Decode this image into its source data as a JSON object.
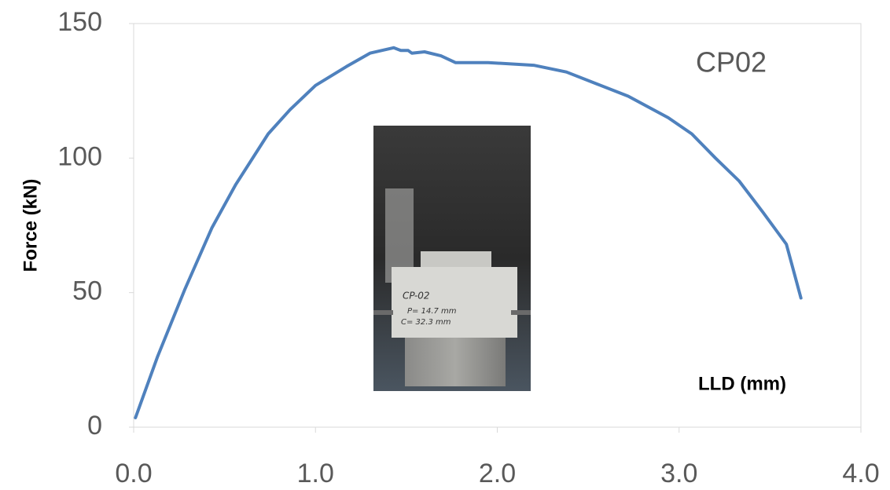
{
  "chart_data": {
    "type": "line",
    "annotation": "CP02",
    "x_label": "LLD (mm)",
    "y_label": "Force (kN)",
    "x": [
      0.01,
      0.13,
      0.28,
      0.43,
      0.56,
      0.74,
      0.86,
      1.0,
      1.17,
      1.3,
      1.43,
      1.47,
      1.51,
      1.53,
      1.6,
      1.69,
      1.77,
      1.95,
      2.2,
      2.38,
      2.55,
      2.72,
      2.94,
      3.07,
      3.2,
      3.33,
      3.46,
      3.59,
      3.67
    ],
    "values": [
      3.5,
      26,
      51,
      74,
      90,
      109,
      118,
      127,
      134,
      139,
      141,
      140,
      140,
      139,
      139.5,
      138,
      135.5,
      135.5,
      134.5,
      132,
      127.5,
      123,
      115,
      109,
      100,
      91.5,
      80,
      68,
      48
    ],
    "color": "#4f81bd",
    "xlim": [
      0,
      4.0
    ],
    "ylim": [
      0,
      150
    ],
    "xticks": [
      {
        "value": 0,
        "label": "0.0"
      },
      {
        "value": 1,
        "label": "1.0"
      },
      {
        "value": 2,
        "label": "2.0"
      },
      {
        "value": 3,
        "label": "3.0"
      },
      {
        "value": 4,
        "label": "4.0"
      }
    ],
    "yticks": [
      0,
      50,
      100,
      150
    ],
    "grid": false,
    "photo_text": [
      "CP-02",
      "P= 14.7 mm",
      "C= 32.3 mm"
    ]
  }
}
